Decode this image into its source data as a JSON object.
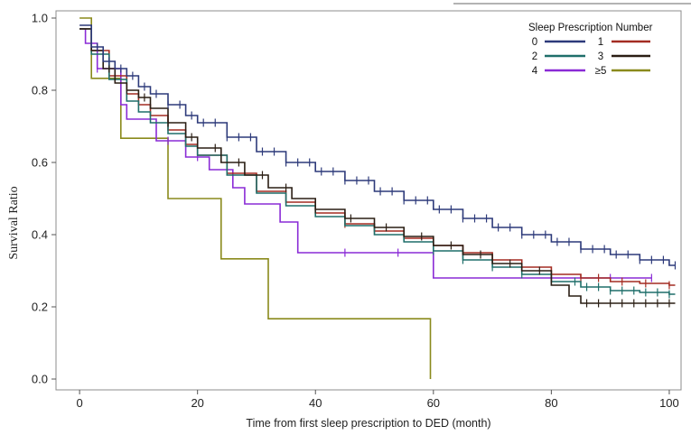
{
  "chart_data": {
    "type": "line",
    "subtype": "kaplan-meier-step",
    "title": "",
    "xlabel": "Time from first sleep prescription to DED (month)",
    "ylabel": "Survival Ratio",
    "xlim": [
      -4,
      102
    ],
    "ylim": [
      -0.03,
      1.02
    ],
    "x_ticks": [
      0,
      20,
      40,
      60,
      80,
      100
    ],
    "y_ticks": [
      0.0,
      0.2,
      0.4,
      0.6,
      0.8,
      1.0
    ],
    "x_tick_labels": [
      "0",
      "20",
      "40",
      "60",
      "80",
      "100"
    ],
    "y_tick_labels": [
      "0.0",
      "0.2",
      "0.4",
      "0.6",
      "0.8",
      "1.0"
    ],
    "grid": false,
    "legend": {
      "title": "Sleep Prescription Number",
      "placement": "top-right",
      "entries": [
        {
          "label": "0",
          "series": 0
        },
        {
          "label": "1",
          "series": 1
        },
        {
          "label": "2",
          "series": 2
        },
        {
          "label": "3",
          "series": 3
        },
        {
          "label": "4",
          "series": 4
        },
        {
          "label": "≥5",
          "series": 5
        }
      ]
    },
    "series": [
      {
        "name": "0",
        "color": "#2d3a7a",
        "x": [
          0,
          2,
          4,
          6,
          8,
          10,
          12,
          15,
          18,
          20,
          25,
          30,
          35,
          40,
          45,
          50,
          55,
          60,
          65,
          70,
          75,
          80,
          85,
          90,
          95,
          100,
          101
        ],
        "y": [
          0.98,
          0.92,
          0.88,
          0.86,
          0.84,
          0.81,
          0.79,
          0.76,
          0.73,
          0.71,
          0.67,
          0.63,
          0.6,
          0.575,
          0.55,
          0.52,
          0.495,
          0.47,
          0.445,
          0.42,
          0.4,
          0.38,
          0.36,
          0.345,
          0.33,
          0.315,
          0.315
        ],
        "censor_x": [
          3,
          5,
          7,
          9,
          11,
          13,
          15,
          17,
          19,
          21,
          23,
          25,
          27,
          29,
          31,
          33,
          35,
          37,
          39,
          41,
          43,
          45,
          47,
          49,
          51,
          53,
          55,
          57,
          59,
          61,
          63,
          65,
          67,
          69,
          71,
          73,
          75,
          77,
          79,
          81,
          83,
          85,
          87,
          89,
          91,
          93,
          95,
          97,
          99,
          101
        ]
      },
      {
        "name": "1",
        "color": "#a32c22",
        "x": [
          0,
          2,
          5,
          8,
          10,
          12,
          15,
          18,
          20,
          25,
          30,
          35,
          40,
          45,
          50,
          55,
          60,
          65,
          70,
          75,
          80,
          85,
          90,
          95,
          100,
          101
        ],
        "y": [
          0.97,
          0.91,
          0.84,
          0.79,
          0.76,
          0.73,
          0.69,
          0.65,
          0.62,
          0.57,
          0.52,
          0.49,
          0.46,
          0.43,
          0.41,
          0.39,
          0.37,
          0.35,
          0.33,
          0.31,
          0.29,
          0.28,
          0.27,
          0.265,
          0.26,
          0.26
        ],
        "censor_x": [
          40,
          45,
          50,
          55,
          60,
          65,
          70,
          75,
          80,
          85,
          88,
          92,
          96,
          100
        ]
      },
      {
        "name": "2",
        "color": "#1f6f6a",
        "x": [
          0,
          2,
          5,
          8,
          10,
          12,
          15,
          18,
          20,
          25,
          30,
          35,
          40,
          45,
          50,
          55,
          60,
          65,
          70,
          75,
          80,
          85,
          90,
          95,
          100,
          101
        ],
        "y": [
          0.97,
          0.9,
          0.83,
          0.77,
          0.74,
          0.71,
          0.68,
          0.645,
          0.62,
          0.565,
          0.515,
          0.48,
          0.45,
          0.425,
          0.4,
          0.38,
          0.355,
          0.33,
          0.31,
          0.29,
          0.27,
          0.255,
          0.245,
          0.24,
          0.235,
          0.235
        ],
        "censor_x": [
          60,
          65,
          70,
          75,
          80,
          84,
          86,
          88,
          90,
          92,
          94,
          96,
          98,
          100
        ]
      },
      {
        "name": "3",
        "color": "#2a1e14",
        "x": [
          0,
          2,
          4,
          6,
          8,
          10,
          12,
          15,
          18,
          20,
          24,
          28,
          32,
          36,
          40,
          45,
          50,
          55,
          60,
          65,
          70,
          75,
          80,
          83,
          85,
          90,
          95,
          101
        ],
        "y": [
          0.97,
          0.91,
          0.86,
          0.82,
          0.8,
          0.78,
          0.75,
          0.71,
          0.67,
          0.64,
          0.6,
          0.565,
          0.53,
          0.5,
          0.47,
          0.445,
          0.42,
          0.395,
          0.37,
          0.345,
          0.32,
          0.3,
          0.26,
          0.23,
          0.21,
          0.21,
          0.21,
          0.21
        ],
        "censor_x": [
          5,
          8,
          11,
          15,
          19,
          23,
          27,
          31,
          35,
          40,
          46,
          52,
          58,
          63,
          68,
          73,
          78,
          86,
          88,
          90,
          92,
          94,
          96,
          98,
          100
        ]
      },
      {
        "name": "4",
        "color": "#8a2bd6",
        "x": [
          0,
          1,
          3,
          7,
          8,
          13,
          18,
          22,
          26,
          28,
          34,
          37,
          60,
          97
        ],
        "y": [
          0.97,
          0.93,
          0.86,
          0.76,
          0.72,
          0.66,
          0.615,
          0.58,
          0.53,
          0.485,
          0.435,
          0.35,
          0.28,
          0.28
        ],
        "censor_x": [
          3,
          15,
          20,
          45,
          54,
          90,
          97
        ]
      },
      {
        "name": "≥5",
        "color": "#8a8a1c",
        "x": [
          0,
          2,
          7,
          15,
          24,
          32,
          59.5,
          59.5
        ],
        "y": [
          1.0,
          0.833,
          0.667,
          0.5,
          0.333,
          0.167,
          0.167,
          0.0
        ],
        "censor_x": []
      }
    ]
  }
}
